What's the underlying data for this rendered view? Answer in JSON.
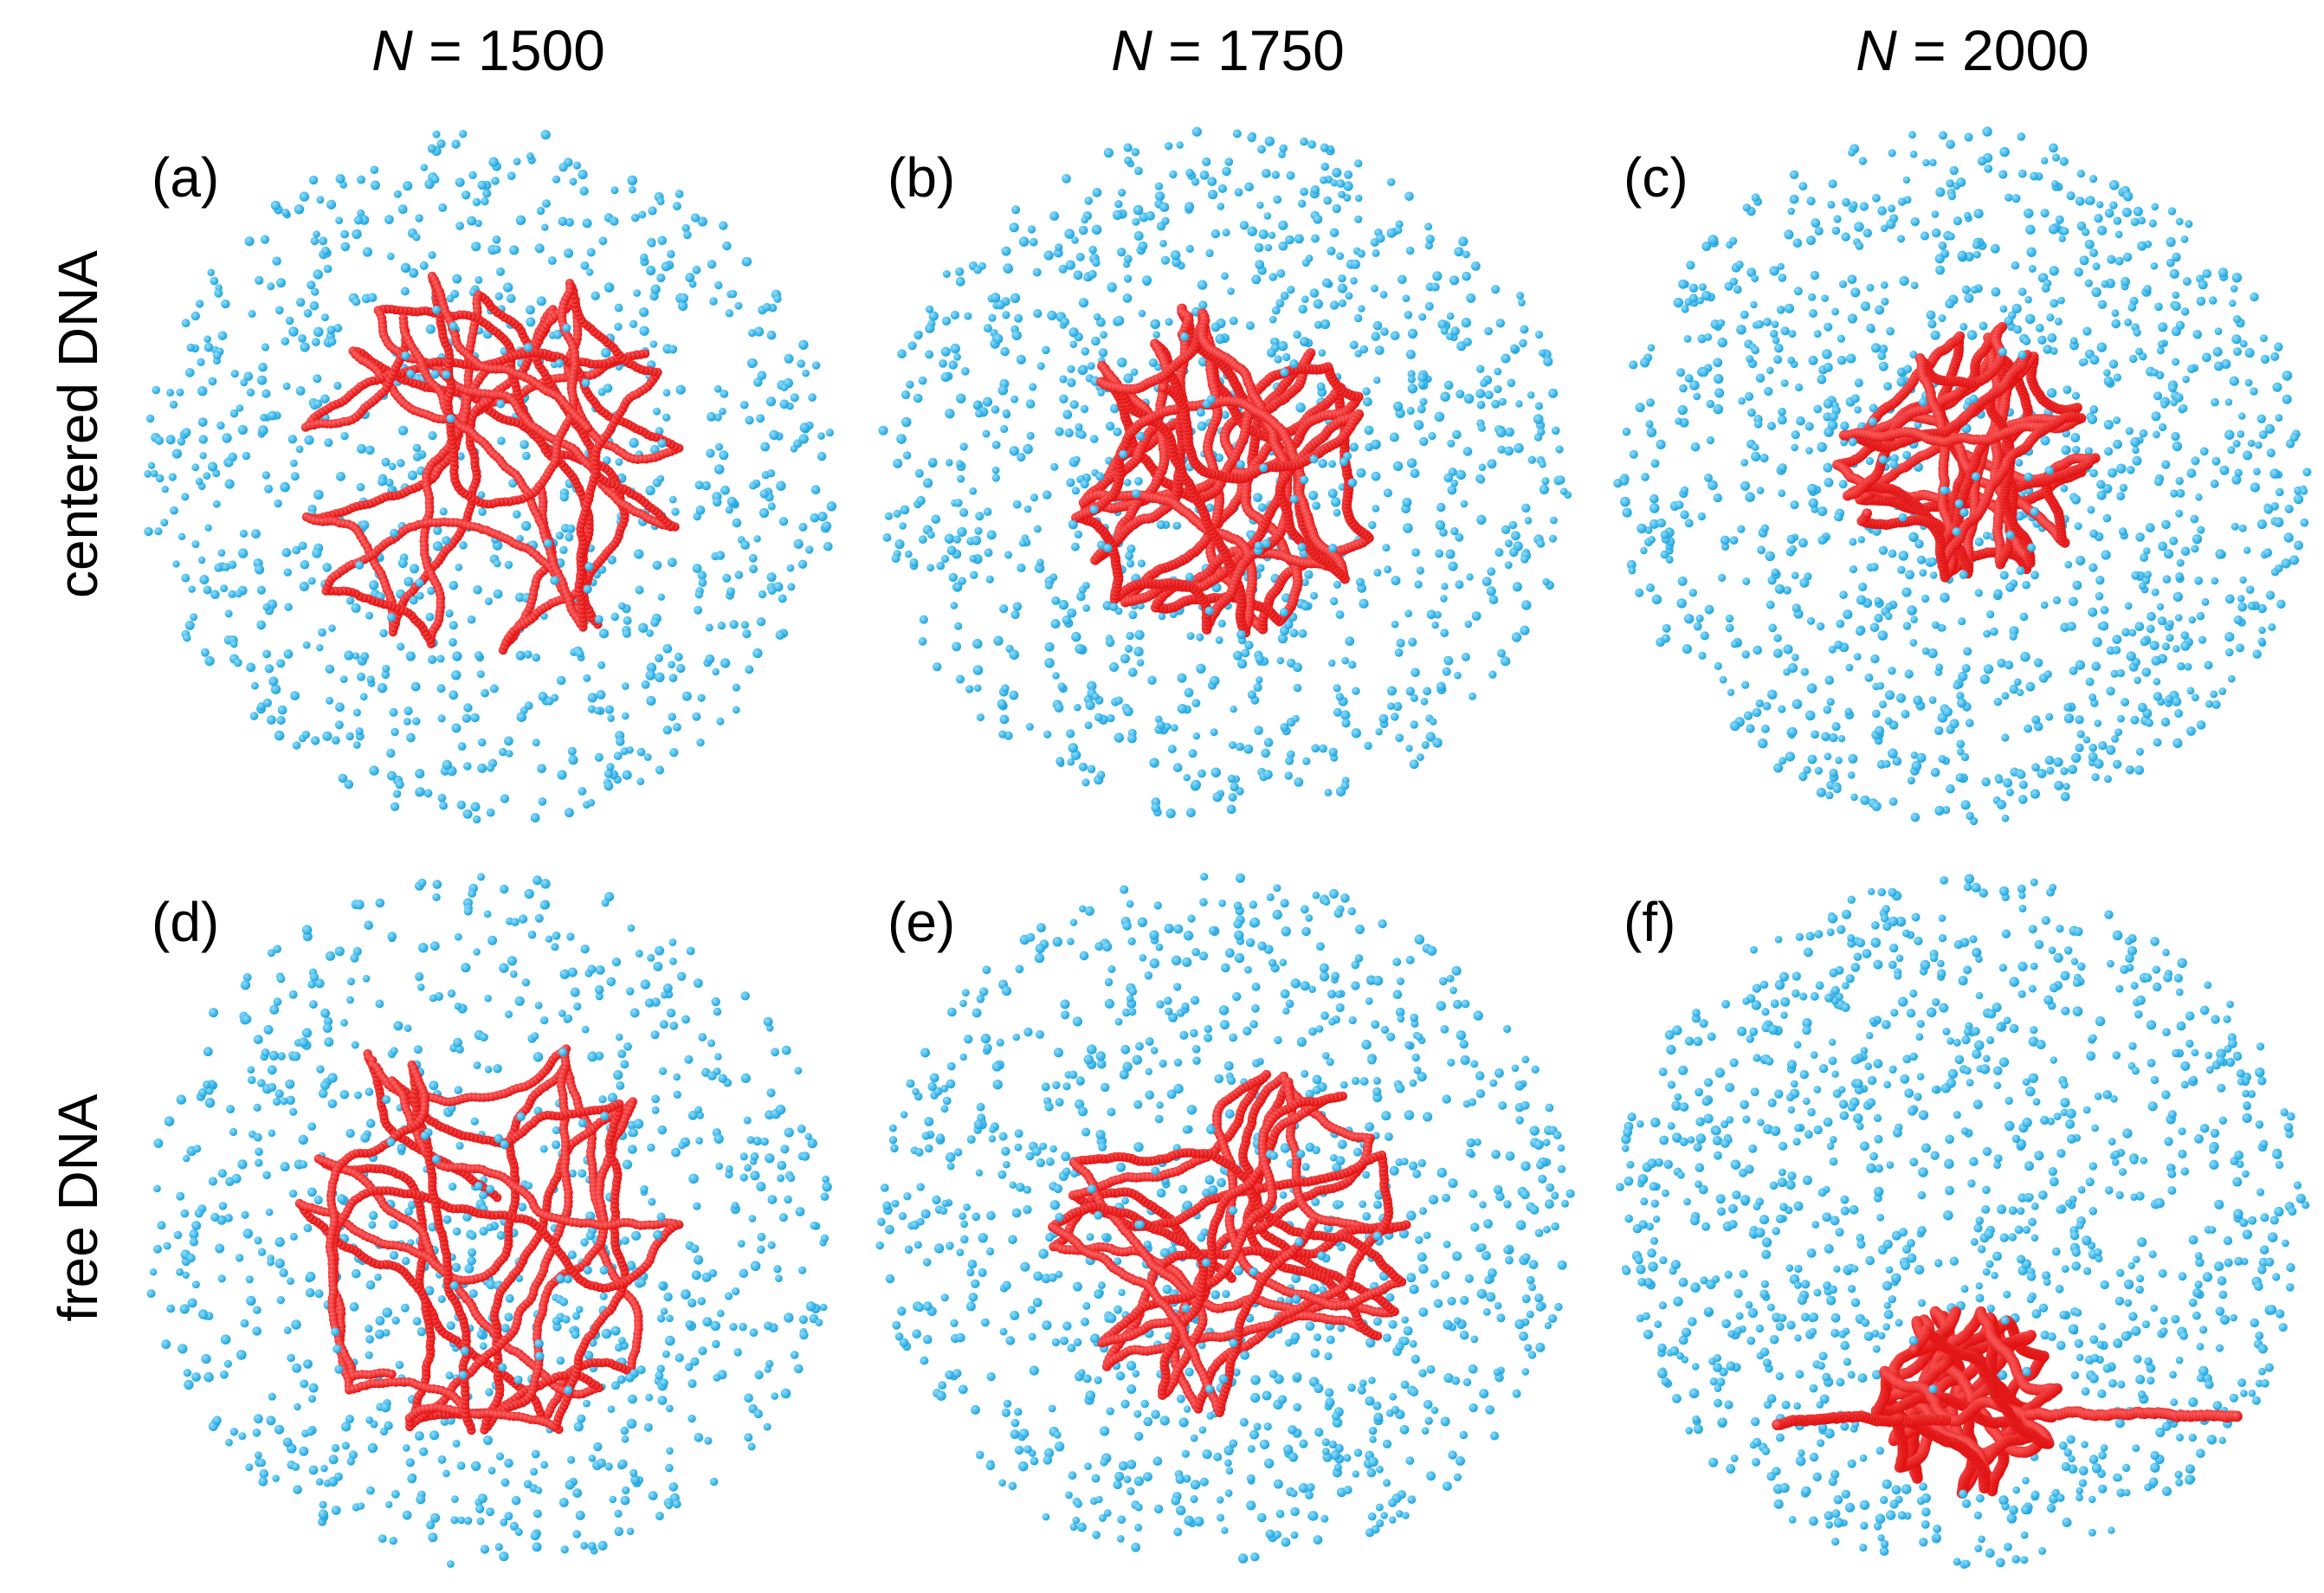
{
  "figure": {
    "columns": [
      {
        "var": "N",
        "rest": " = 1500"
      },
      {
        "var": "N",
        "rest": " = 1750"
      },
      {
        "var": "N",
        "rest": " = 2000"
      }
    ],
    "rows": [
      {
        "label": "centered DNA"
      },
      {
        "label": "free DNA"
      }
    ],
    "panels": [
      {
        "label": "(a)",
        "crowder_count": 1500,
        "dna_state": "expanded"
      },
      {
        "label": "(b)",
        "crowder_count": 1750,
        "dna_state": "compacting"
      },
      {
        "label": "(c)",
        "crowder_count": 2000,
        "dna_state": "compact"
      },
      {
        "label": "(d)",
        "crowder_count": 1500,
        "dna_state": "expanded"
      },
      {
        "label": "(e)",
        "crowder_count": 1750,
        "dna_state": "expanded"
      },
      {
        "label": "(f)",
        "crowder_count": 2000,
        "dna_state": "collapsed-off-center"
      }
    ],
    "colors": {
      "dna": "#e01010",
      "dna_highlight": "#ff6a6a",
      "crowder": "#1fa3dc",
      "crowder_highlight": "#8fe0ff"
    },
    "legend_semantics": {
      "red_chain": "DNA polymer",
      "blue_spheres": "crowders"
    }
  }
}
